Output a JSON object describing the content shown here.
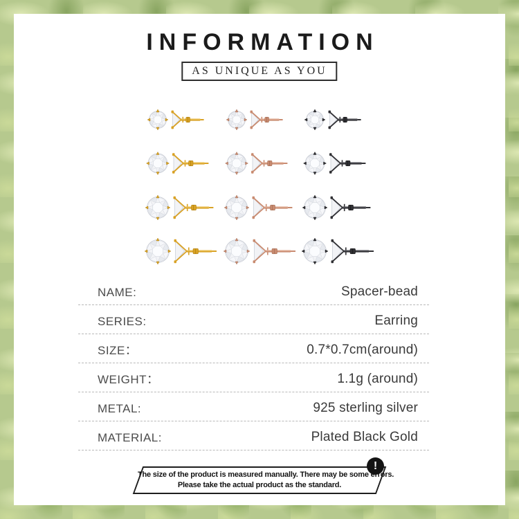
{
  "page": {
    "title": "INFORMATION",
    "tagline": "AS UNIQUE AS YOU"
  },
  "product_gallery": {
    "description": "earring studs front and side views, 4 size rows by 3 finishes",
    "rows": [
      {
        "size": 25
      },
      {
        "size": 28
      },
      {
        "size": 31
      },
      {
        "size": 33
      }
    ],
    "variants": [
      {
        "name": "gold",
        "metal": "#d9a225",
        "metal_dark": "#a57708",
        "metal_light": "#f4d478"
      },
      {
        "name": "rose-gold",
        "metal": "#c98b70",
        "metal_dark": "#9c6750",
        "metal_light": "#ecc0ab"
      },
      {
        "name": "black-gold",
        "metal": "#303034",
        "metal_dark": "#101012",
        "metal_light": "#6b6b72"
      }
    ],
    "stone_color": "#f2f3f6"
  },
  "spec_table": {
    "rows": [
      {
        "label": "NAME:",
        "value": "Spacer-bead"
      },
      {
        "label": "SERIES:",
        "value": "Earring"
      },
      {
        "label": "SIZE：",
        "value": "0.7*0.7cm(around)"
      },
      {
        "label": "WEIGHT：",
        "value": "1.1g (around)"
      },
      {
        "label": "METAL:",
        "value": "925 sterling silver"
      },
      {
        "label": "MATERIAL:",
        "value": "Plated Black Gold"
      }
    ]
  },
  "disclaimer": {
    "icon": "exclamation-icon",
    "icon_glyph": "!",
    "line1": "The size of the product is measured manually. There may be some errors.",
    "line2": "Please take the actual product as the standard."
  },
  "theme": {
    "border_green": "#b6c98e",
    "card_bg": "#ffffff",
    "title_color": "#1b1b1b",
    "label_color": "#4c4c4c",
    "value_color": "#3a3a3a",
    "dash_color": "#b8b8b8",
    "disclaimer_border": "#1d1d1d"
  }
}
